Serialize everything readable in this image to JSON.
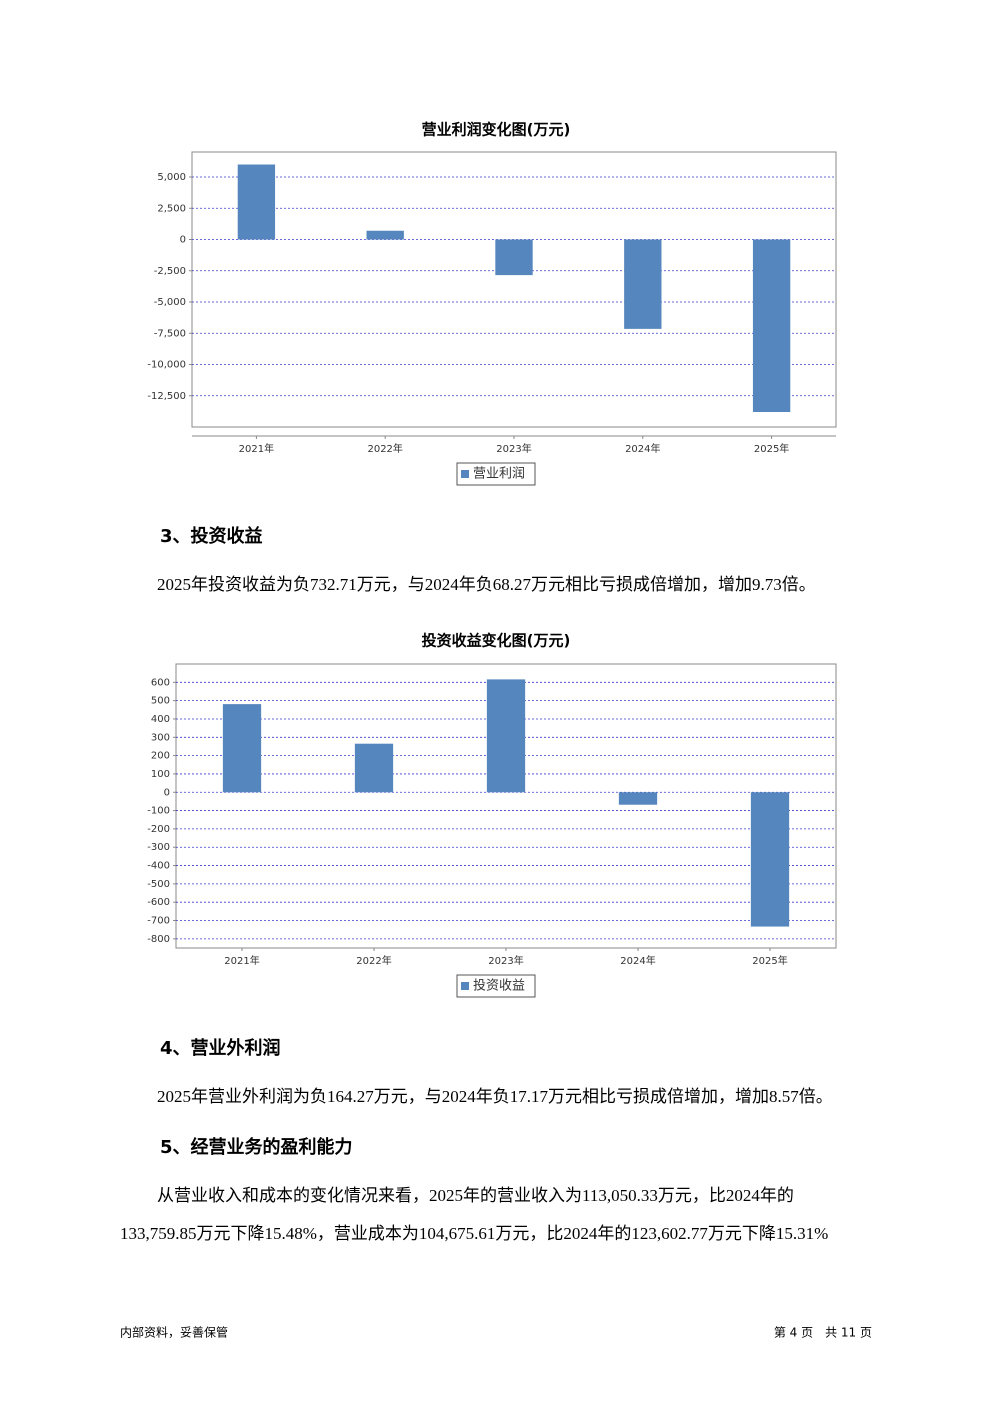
{
  "chart_data": [
    {
      "type": "bar",
      "title": "营业利润变化图(万元)",
      "categories": [
        "2021年",
        "2022年",
        "2023年",
        "2024年",
        "2025年"
      ],
      "series": [
        {
          "name": "营业利润",
          "color": "#5586bd",
          "values": [
            6000,
            700,
            -2850,
            -7150,
            -13800
          ]
        }
      ],
      "ylim": [
        -15000,
        7000
      ],
      "yticks": [
        {
          "value": 5000,
          "label": "5,000"
        },
        {
          "value": 2500,
          "label": "2,500"
        },
        0,
        {
          "value": -2500,
          "label": "-2,500"
        },
        {
          "value": -5000,
          "label": "-5,000"
        },
        {
          "value": -7500,
          "label": "-7,500"
        },
        {
          "value": -10000,
          "label": "-10,000"
        },
        {
          "value": -12500,
          "label": "-12,500"
        }
      ],
      "grid": true
    },
    {
      "type": "bar",
      "title": "投资收益变化图(万元)",
      "categories": [
        "2021年",
        "2022年",
        "2023年",
        "2024年",
        "2025年"
      ],
      "series": [
        {
          "name": "投资收益",
          "color": "#5586bd",
          "values": [
            481,
            265,
            616,
            -68,
            -733
          ]
        }
      ],
      "ylim": [
        -850,
        700
      ],
      "yticks": [
        600,
        500,
        400,
        300,
        200,
        100,
        0,
        -100,
        -200,
        -300,
        -400,
        -500,
        -600,
        -700,
        -800
      ],
      "grid": true
    }
  ],
  "sections": [
    {
      "heading": "3、投资收益",
      "lines": [
        "2025年投资收益为负732.71万元，与2024年负68.27万元相比亏损成倍增加，增加9.73倍。"
      ]
    },
    {
      "heading": "4、营业外利润",
      "lines": [
        "2025年营业外利润为负164.27万元，与2024年负17.17万元相比亏损成倍增加，增加8.57倍。"
      ]
    },
    {
      "heading": "5、经营业务的盈利能力",
      "lines": [
        "从营业收入和成本的变化情况来看，2025年的营业收入为113,050.33万元，比2024年的",
        "133,759.85万元下降15.48%，营业成本为104,675.61万元，比2024年的123,602.77万元下降15.31%"
      ]
    }
  ],
  "footer": {
    "left": "内部资料，妥善保管",
    "right": "第 4 页　共 11 页"
  }
}
